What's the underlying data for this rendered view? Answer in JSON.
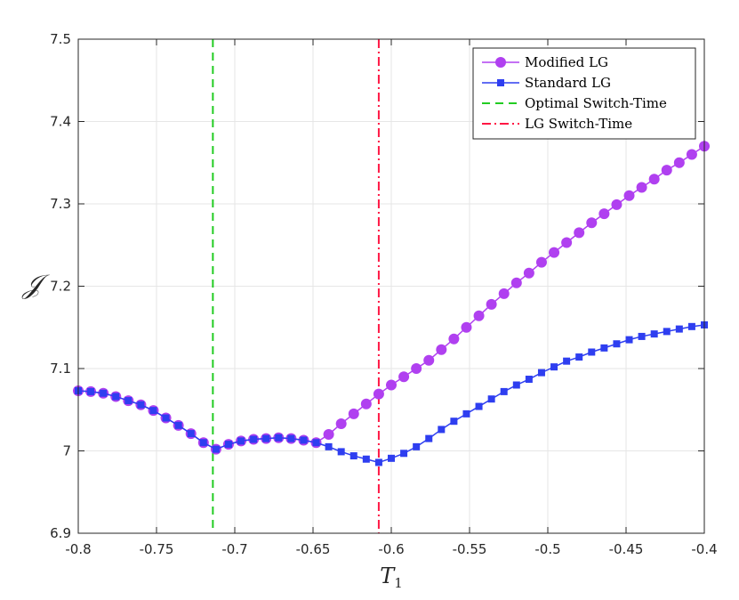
{
  "chart_data": {
    "type": "line",
    "title": "",
    "xlabel": "T",
    "xlabel_subscript": "1",
    "ylabel": "𝒥",
    "xlim": [
      -0.8,
      -0.4
    ],
    "ylim": [
      6.9,
      7.5
    ],
    "grid": true,
    "legend_position": "top-right",
    "x_ticks": [
      -0.8,
      -0.75,
      -0.7,
      -0.65,
      -0.6,
      -0.55,
      -0.5,
      -0.45,
      -0.4
    ],
    "x_tick_labels": [
      "-0.8",
      "-0.75",
      "-0.7",
      "-0.65",
      "-0.6",
      "-0.55",
      "-0.5",
      "-0.45",
      "-0.4"
    ],
    "y_ticks": [
      6.9,
      7.0,
      7.1,
      7.2,
      7.3,
      7.4,
      7.5
    ],
    "y_tick_labels": [
      "6.9",
      "7",
      "7.1",
      "7.2",
      "7.3",
      "7.4",
      "7.5"
    ],
    "series": [
      {
        "name": "Modified LG",
        "color": "#B040F0",
        "marker": "circle",
        "x": [
          -0.8,
          -0.792,
          -0.784,
          -0.776,
          -0.768,
          -0.76,
          -0.752,
          -0.744,
          -0.736,
          -0.728,
          -0.72,
          -0.712,
          -0.704,
          -0.696,
          -0.688,
          -0.68,
          -0.672,
          -0.664,
          -0.656,
          -0.648,
          -0.64,
          -0.632,
          -0.624,
          -0.616,
          -0.608,
          -0.6,
          -0.592,
          -0.584,
          -0.576,
          -0.568,
          -0.56,
          -0.552,
          -0.544,
          -0.536,
          -0.528,
          -0.52,
          -0.512,
          -0.504,
          -0.496,
          -0.488,
          -0.48,
          -0.472,
          -0.464,
          -0.456,
          -0.448,
          -0.44,
          -0.432,
          -0.424,
          -0.416,
          -0.408,
          -0.4
        ],
        "values": [
          7.073,
          7.072,
          7.07,
          7.066,
          7.061,
          7.056,
          7.049,
          7.04,
          7.031,
          7.021,
          7.01,
          7.002,
          7.008,
          7.012,
          7.014,
          7.015,
          7.016,
          7.015,
          7.013,
          7.01,
          7.02,
          7.033,
          7.045,
          7.057,
          7.069,
          7.08,
          7.09,
          7.1,
          7.11,
          7.123,
          7.136,
          7.15,
          7.164,
          7.178,
          7.191,
          7.204,
          7.216,
          7.229,
          7.241,
          7.253,
          7.265,
          7.277,
          7.288,
          7.299,
          7.31,
          7.32,
          7.33,
          7.341,
          7.35,
          7.36,
          7.37
        ]
      },
      {
        "name": "Standard LG",
        "color": "#2E3EF0",
        "marker": "square",
        "x": [
          -0.8,
          -0.792,
          -0.784,
          -0.776,
          -0.768,
          -0.76,
          -0.752,
          -0.744,
          -0.736,
          -0.728,
          -0.72,
          -0.712,
          -0.704,
          -0.696,
          -0.688,
          -0.68,
          -0.672,
          -0.664,
          -0.656,
          -0.648,
          -0.64,
          -0.632,
          -0.624,
          -0.616,
          -0.608,
          -0.6,
          -0.592,
          -0.584,
          -0.576,
          -0.568,
          -0.56,
          -0.552,
          -0.544,
          -0.536,
          -0.528,
          -0.52,
          -0.512,
          -0.504,
          -0.496,
          -0.488,
          -0.48,
          -0.472,
          -0.464,
          -0.456,
          -0.448,
          -0.44,
          -0.432,
          -0.424,
          -0.416,
          -0.408,
          -0.4
        ],
        "values": [
          7.073,
          7.072,
          7.07,
          7.066,
          7.061,
          7.056,
          7.049,
          7.04,
          7.031,
          7.021,
          7.01,
          7.002,
          7.008,
          7.012,
          7.014,
          7.015,
          7.016,
          7.015,
          7.013,
          7.01,
          7.005,
          6.999,
          6.994,
          6.99,
          6.986,
          6.991,
          6.997,
          7.005,
          7.015,
          7.026,
          7.036,
          7.045,
          7.054,
          7.063,
          7.072,
          7.08,
          7.087,
          7.095,
          7.102,
          7.109,
          7.114,
          7.12,
          7.125,
          7.13,
          7.135,
          7.139,
          7.142,
          7.145,
          7.148,
          7.151,
          7.153
        ]
      },
      {
        "name": "Optimal Switch-Time",
        "color": "#22CC22",
        "style": "dashed",
        "vertical_x": -0.714
      },
      {
        "name": "LG Switch-Time",
        "color": "#FF1744",
        "style": "dash-dot",
        "vertical_x": -0.608
      }
    ]
  }
}
